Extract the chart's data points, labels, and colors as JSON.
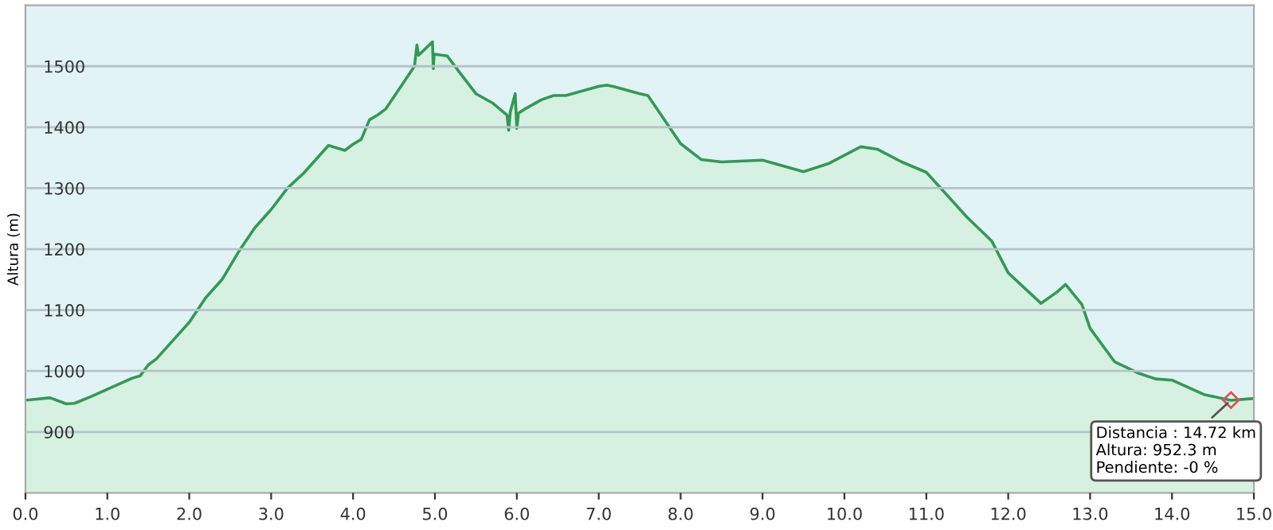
{
  "chart_data": {
    "type": "area",
    "ylabel": "Altura (m)",
    "x": [
      0,
      0.3,
      0.5,
      0.6,
      0.8,
      1.0,
      1.3,
      1.4,
      1.5,
      1.6,
      1.8,
      2.0,
      2.2,
      2.4,
      2.6,
      2.8,
      3.0,
      3.2,
      3.4,
      3.7,
      3.9,
      4.0,
      4.1,
      4.2,
      4.3,
      4.4,
      4.6,
      4.75,
      4.78,
      4.8,
      4.97,
      4.98,
      4.99,
      5.15,
      5.3,
      5.5,
      5.7,
      5.88,
      5.9,
      5.92,
      5.98,
      6.0,
      6.02,
      6.1,
      6.3,
      6.45,
      6.6,
      7.0,
      7.1,
      7.2,
      7.5,
      7.6,
      8.0,
      8.25,
      8.5,
      9.0,
      9.5,
      9.8,
      10.0,
      10.2,
      10.4,
      10.7,
      11.0,
      11.5,
      11.8,
      12.0,
      12.4,
      12.6,
      12.7,
      12.9,
      13.0,
      13.3,
      13.6,
      13.8,
      14.0,
      14.4,
      14.72,
      15.0
    ],
    "series": [
      {
        "color": "#339955",
        "values": [
          952,
          956,
          946,
          947,
          958,
          970,
          988,
          992,
          1010,
          1020,
          1050,
          1080,
          1120,
          1150,
          1195,
          1235,
          1265,
          1300,
          1325,
          1370,
          1362,
          1372,
          1380,
          1412,
          1420,
          1430,
          1470,
          1500,
          1535,
          1518,
          1540,
          1496,
          1520,
          1517,
          1490,
          1455,
          1440,
          1420,
          1395,
          1425,
          1455,
          1398,
          1423,
          1430,
          1445,
          1452,
          1452,
          1467,
          1469,
          1466,
          1455,
          1452,
          1373,
          1347,
          1343,
          1346,
          1327,
          1340,
          1354,
          1368,
          1364,
          1343,
          1326,
          1252,
          1213,
          1161,
          1111,
          1130,
          1142,
          1109,
          1070,
          1015,
          996,
          987,
          985,
          961,
          952,
          955
        ]
      }
    ],
    "xlim": [
      0,
      15
    ],
    "ylim": [
      800,
      1600
    ],
    "xticks": [
      {
        "value": 0,
        "label": "0.0"
      },
      {
        "value": 1,
        "label": "1.0"
      },
      {
        "value": 2,
        "label": "2.0"
      },
      {
        "value": 3,
        "label": "3.0"
      },
      {
        "value": 4,
        "label": "4.0"
      },
      {
        "value": 5,
        "label": "5.0"
      },
      {
        "value": 6,
        "label": "6.0"
      },
      {
        "value": 7,
        "label": "7.0"
      },
      {
        "value": 8,
        "label": "8.0"
      },
      {
        "value": 9,
        "label": "9.0"
      },
      {
        "value": 10,
        "label": "10.0"
      },
      {
        "value": 11,
        "label": "11.0"
      },
      {
        "value": 12,
        "label": "12.0"
      },
      {
        "value": 13,
        "label": "13.0"
      },
      {
        "value": 14,
        "label": "14.0"
      },
      {
        "value": 15,
        "label": "15.0"
      }
    ],
    "yticks": [
      900,
      1000,
      1100,
      1200,
      1300,
      1400,
      1500
    ],
    "grid": "y",
    "annotations": [
      {
        "text": "Distancia : 14.72 km\nAltura: 952.3 m\nPendiente: -0 %",
        "x": 14.72,
        "y": 952.3
      }
    ]
  }
}
